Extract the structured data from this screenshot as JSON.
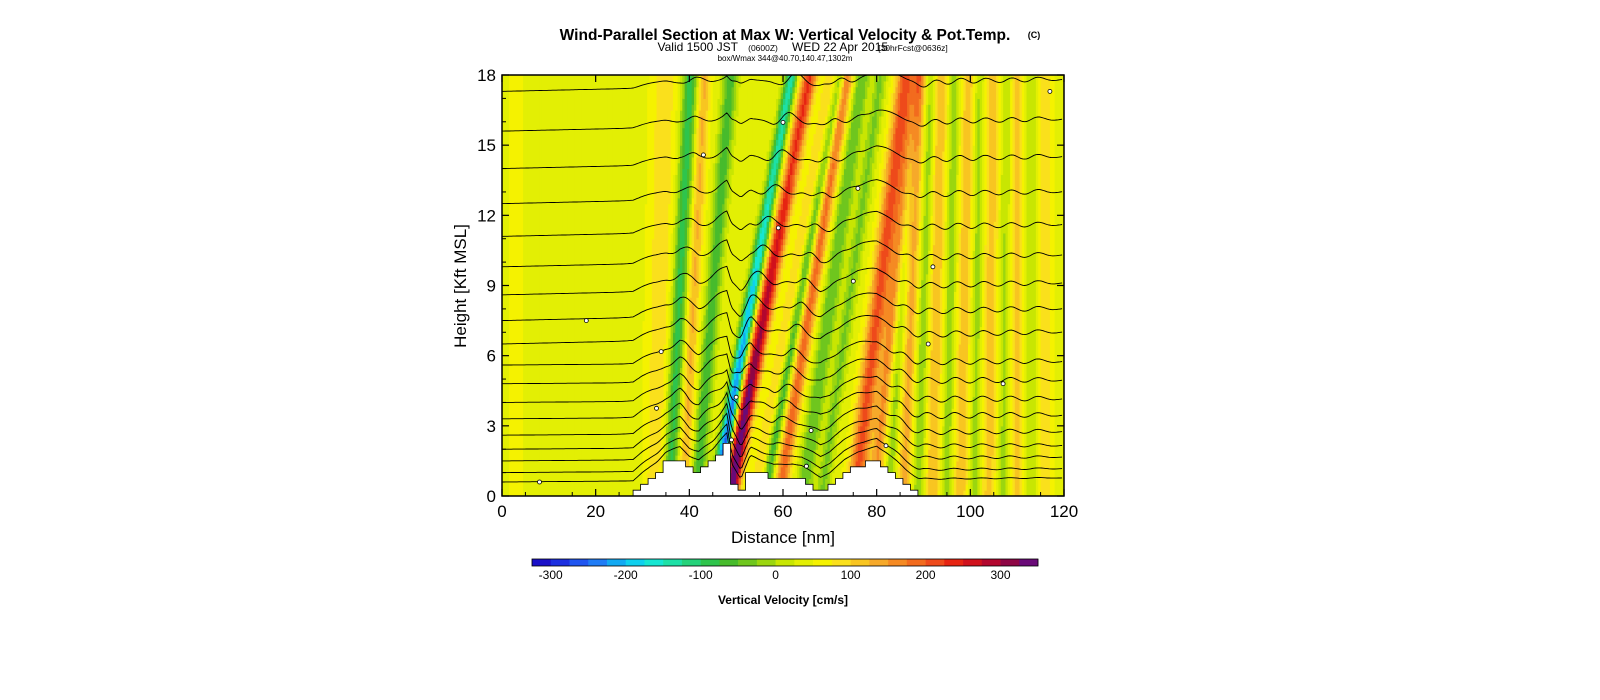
{
  "header": {
    "title": "Wind-Parallel Section at Max W: Vertical Velocity & Pot.Temp.",
    "copyright": "(C)",
    "valid_prefix": "Valid 1500 JST",
    "valid_utc": "(0600Z)",
    "valid_date": "WED 22 Apr 2015",
    "forecast": "[30hrFcst@0636z]",
    "box_info": "box/Wmax  344@40.70,140.47,1302m"
  },
  "chart_data": {
    "type": "heatmap",
    "xlabel": "Distance [nm]",
    "ylabel": "Height [Kft MSL]",
    "xlim": [
      0,
      120
    ],
    "ylim": [
      0,
      18
    ],
    "x_ticks": [
      0,
      20,
      40,
      60,
      80,
      100,
      120
    ],
    "y_ticks": [
      0,
      3,
      6,
      9,
      12,
      15,
      18
    ],
    "grid": false,
    "field": "Vertical Velocity",
    "field_units": "cm/s",
    "colorbar": {
      "label": "Vertical Velocity [cm/s]",
      "tick_values": [
        -300,
        -200,
        -100,
        0,
        100,
        200,
        300
      ],
      "levels": [
        -325,
        -300,
        -275,
        -250,
        -225,
        -200,
        -175,
        -150,
        -125,
        -100,
        -75,
        -50,
        -25,
        0,
        25,
        50,
        75,
        100,
        125,
        150,
        175,
        200,
        225,
        250,
        275,
        300,
        325,
        350
      ],
      "colors": [
        "#1a10c8",
        "#1c2fe0",
        "#1f55f0",
        "#1f7cf5",
        "#12a9f2",
        "#0fd0ee",
        "#16e6d2",
        "#1ee0a6",
        "#25d27a",
        "#2fc44c",
        "#47bb2c",
        "#6fc61e",
        "#9bd60f",
        "#c8e602",
        "#e3ef04",
        "#f5f200",
        "#fae01c",
        "#f8c521",
        "#f6a92a",
        "#f58a23",
        "#f26b1e",
        "#ee4a1b",
        "#e62412",
        "#d0111c",
        "#b2072e",
        "#8e0645",
        "#6a0a78"
      ],
      "placement": "bottom"
    },
    "terrain": {
      "x": [
        28,
        30,
        33,
        35,
        38,
        40,
        42,
        45,
        48,
        49,
        51,
        53,
        55,
        58,
        62,
        64,
        68,
        70,
        73,
        76,
        80,
        82,
        84,
        86,
        89,
        92
      ],
      "height": [
        0,
        0.4,
        0.9,
        1.4,
        1.6,
        1.2,
        1.0,
        1.5,
        2.2,
        0.8,
        0.1,
        1.2,
        1.0,
        0.7,
        0.8,
        0.7,
        0.1,
        0.3,
        0.9,
        1.3,
        1.6,
        1.3,
        0.9,
        0.5,
        0.0,
        0.0
      ]
    },
    "max_w": 344,
    "waves": [
      {
        "x0": 33,
        "value": 55,
        "width": 2.6,
        "tilt": 0.02
      },
      {
        "x0": 36,
        "value": -130,
        "width": 1.6,
        "tilt": 0.05
      },
      {
        "x0": 39,
        "value": 90,
        "width": 1.4,
        "tilt": 0.05
      },
      {
        "x0": 42,
        "value": -110,
        "width": 1.5,
        "tilt": 0.08
      },
      {
        "x0": 46.5,
        "value": -330,
        "width": 1.3,
        "tilt": 0.18
      },
      {
        "x0": 49.5,
        "value": 344,
        "width": 1.7,
        "tilt": 0.19
      },
      {
        "x0": 55,
        "value": 60,
        "width": 1.6,
        "tilt": 0.18
      },
      {
        "x0": 57,
        "value": -120,
        "width": 1.2,
        "tilt": 0.18
      },
      {
        "x0": 60,
        "value": 150,
        "width": 1.6,
        "tilt": 0.16
      },
      {
        "x0": 65,
        "value": -90,
        "width": 1.7,
        "tilt": 0.14
      },
      {
        "x0": 69,
        "value": -70,
        "width": 1.4,
        "tilt": 0.14
      },
      {
        "x0": 76,
        "value": 170,
        "width": 2.0,
        "tilt": 0.12
      },
      {
        "x0": 80,
        "value": 110,
        "width": 1.5,
        "tilt": 0.1
      },
      {
        "x0": 83,
        "value": -60,
        "width": 1.2,
        "tilt": 0.06
      },
      {
        "x0": 86,
        "value": 95,
        "width": 1.5,
        "tilt": 0.04
      },
      {
        "x0": 89,
        "value": -65,
        "width": 1.3,
        "tilt": 0.03
      },
      {
        "x0": 92,
        "value": 85,
        "width": 1.6,
        "tilt": 0.02
      },
      {
        "x0": 95,
        "value": -60,
        "width": 1.2,
        "tilt": 0.02
      },
      {
        "x0": 98,
        "value": 80,
        "width": 1.6,
        "tilt": 0.02
      },
      {
        "x0": 101,
        "value": -55,
        "width": 1.2,
        "tilt": 0.01
      },
      {
        "x0": 104,
        "value": 75,
        "width": 1.6,
        "tilt": 0.01
      },
      {
        "x0": 107,
        "value": -50,
        "width": 1.2,
        "tilt": 0.01
      },
      {
        "x0": 110,
        "value": 70,
        "width": 1.6,
        "tilt": 0.0
      },
      {
        "x0": 113,
        "value": -40,
        "width": 1.2,
        "tilt": 0.0
      },
      {
        "x0": 116,
        "value": 60,
        "width": 1.6,
        "tilt": 0.0
      },
      {
        "x0": 3,
        "value": 45,
        "width": 2.0,
        "tilt": 0.0
      },
      {
        "x0": 16,
        "value": 25,
        "width": 3.0,
        "tilt": 0.0
      }
    ],
    "theta_contours": {
      "description": "isentropes, 18 lines",
      "base_heights": [
        0.6,
        1.0,
        1.5,
        2.0,
        2.6,
        3.3,
        4.0,
        4.8,
        5.6,
        6.5,
        7.5,
        8.6,
        9.8,
        11.1,
        12.5,
        14.0,
        15.6,
        17.3
      ]
    }
  }
}
